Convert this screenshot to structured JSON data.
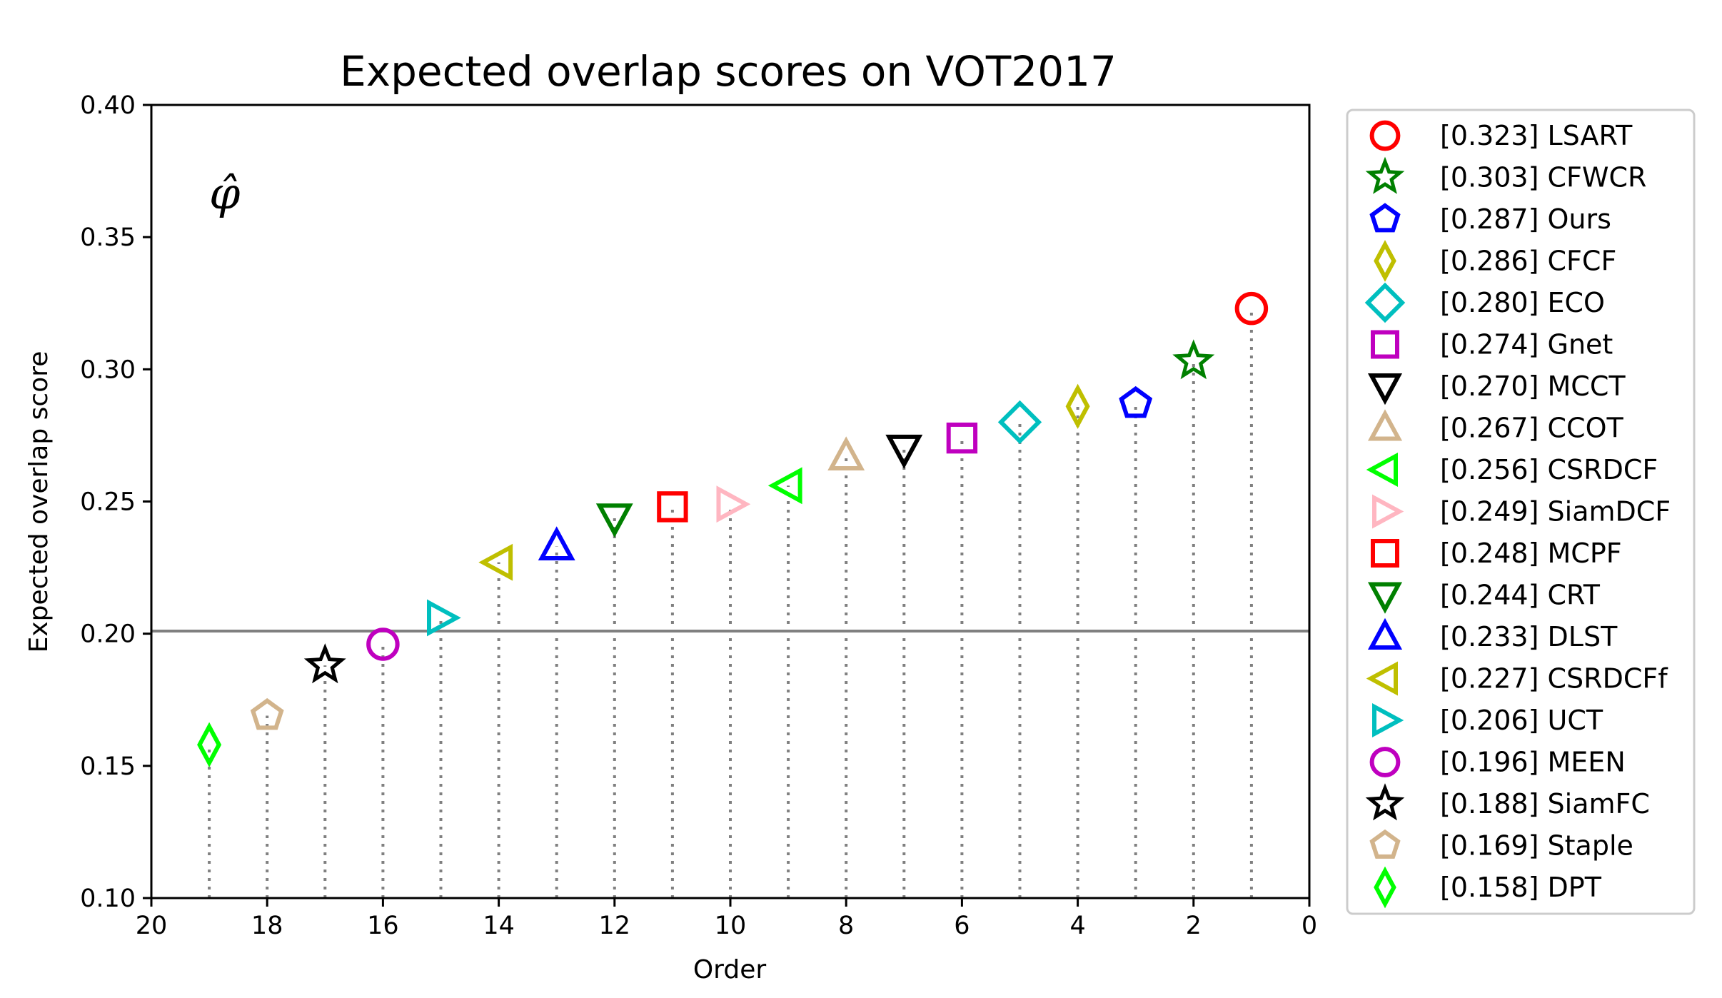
{
  "chart_data": {
    "type": "scatter",
    "title": "Expected overlap scores on VOT2017",
    "xlabel": "Order",
    "ylabel": "Expected overlap score",
    "xlim": [
      20,
      0
    ],
    "ylim": [
      0.1,
      0.4
    ],
    "xticks": [
      "20",
      "18",
      "16",
      "14",
      "12",
      "10",
      "8",
      "6",
      "4",
      "2",
      "0"
    ],
    "yticks": [
      "0.10",
      "0.15",
      "0.20",
      "0.25",
      "0.30",
      "0.35",
      "0.40"
    ],
    "annotation": "φ̂",
    "reference_line": 0.201,
    "legend_position": "outside-right",
    "series": [
      {
        "name": "LSART",
        "label": "[0.323] LSART",
        "order": 1,
        "value": 0.323,
        "marker": "circle",
        "color": "#ff0000"
      },
      {
        "name": "CFWCR",
        "label": "[0.303] CFWCR",
        "order": 2,
        "value": 0.303,
        "marker": "star",
        "color": "#008000"
      },
      {
        "name": "Ours",
        "label": "[0.287] Ours",
        "order": 3,
        "value": 0.287,
        "marker": "pentagon",
        "color": "#0000ff"
      },
      {
        "name": "CFCF",
        "label": "[0.286] CFCF",
        "order": 4,
        "value": 0.286,
        "marker": "thin-diamond",
        "color": "#bfbf00"
      },
      {
        "name": "ECO",
        "label": "[0.280] ECO",
        "order": 5,
        "value": 0.28,
        "marker": "diamond",
        "color": "#00bfbf"
      },
      {
        "name": "Gnet",
        "label": "[0.274] Gnet",
        "order": 6,
        "value": 0.274,
        "marker": "square",
        "color": "#bf00bf"
      },
      {
        "name": "MCCT",
        "label": "[0.270] MCCT",
        "order": 7,
        "value": 0.27,
        "marker": "triangle-down",
        "color": "#000000"
      },
      {
        "name": "CCOT",
        "label": "[0.267] CCOT",
        "order": 8,
        "value": 0.267,
        "marker": "triangle-up",
        "color": "#d2b48c"
      },
      {
        "name": "CSRDCF",
        "label": "[0.256] CSRDCF",
        "order": 9,
        "value": 0.256,
        "marker": "triangle-left",
        "color": "#00ff00"
      },
      {
        "name": "SiamDCF",
        "label": "[0.249] SiamDCF",
        "order": 10,
        "value": 0.249,
        "marker": "triangle-right",
        "color": "#ffb6c1"
      },
      {
        "name": "MCPF",
        "label": "[0.248] MCPF",
        "order": 11,
        "value": 0.248,
        "marker": "square",
        "color": "#ff0000"
      },
      {
        "name": "CRT",
        "label": "[0.244] CRT",
        "order": 12,
        "value": 0.244,
        "marker": "triangle-down",
        "color": "#008000"
      },
      {
        "name": "DLST",
        "label": "[0.233] DLST",
        "order": 13,
        "value": 0.233,
        "marker": "triangle-up",
        "color": "#0000ff"
      },
      {
        "name": "CSRDCFf",
        "label": "[0.227] CSRDCFf",
        "order": 14,
        "value": 0.227,
        "marker": "triangle-left",
        "color": "#bfbf00"
      },
      {
        "name": "UCT",
        "label": "[0.206] UCT",
        "order": 15,
        "value": 0.206,
        "marker": "triangle-right",
        "color": "#00bfbf"
      },
      {
        "name": "MEEN",
        "label": "[0.196] MEEN",
        "order": 16,
        "value": 0.196,
        "marker": "circle",
        "color": "#bf00bf"
      },
      {
        "name": "SiamFC",
        "label": "[0.188] SiamFC",
        "order": 17,
        "value": 0.188,
        "marker": "star",
        "color": "#000000"
      },
      {
        "name": "Staple",
        "label": "[0.169] Staple",
        "order": 18,
        "value": 0.169,
        "marker": "pentagon",
        "color": "#d2b48c"
      },
      {
        "name": "DPT",
        "label": "[0.158] DPT",
        "order": 19,
        "value": 0.158,
        "marker": "thin-diamond",
        "color": "#00ff00"
      }
    ]
  }
}
